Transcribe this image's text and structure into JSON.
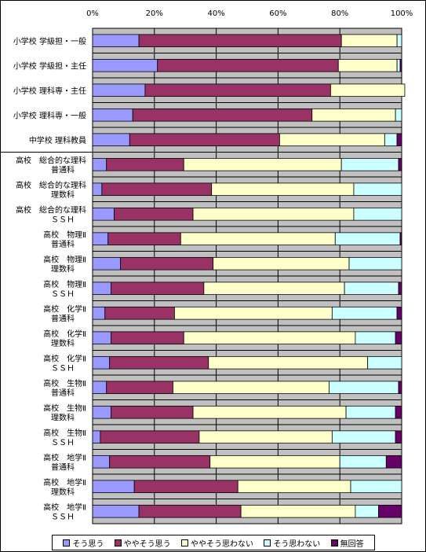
{
  "chart_data": {
    "type": "bar",
    "orientation": "horizontal",
    "stacked": true,
    "percent_stacked": true,
    "xlim": [
      0,
      100
    ],
    "x_ticks": [
      "0%",
      "20%",
      "40%",
      "60%",
      "80%",
      "100%"
    ],
    "grid": true,
    "legend_position": "bottom",
    "categories": [
      [
        "小学校 学級担・一般"
      ],
      [
        "小学校 学級担・主任"
      ],
      [
        "小学校 理科専・主任"
      ],
      [
        "小学校 理科専・一般"
      ],
      [
        "中学校 理科教員"
      ],
      [
        "高校　総合的な理科",
        "普通科"
      ],
      [
        "高校　総合的な理科",
        "理数科"
      ],
      [
        "高校　総合的な理科",
        "ＳＳＨ"
      ],
      [
        "高校　物理Ⅱ",
        "普通科"
      ],
      [
        "高校　物理Ⅱ",
        "理数科"
      ],
      [
        "高校　物理Ⅱ",
        "ＳＳＨ"
      ],
      [
        "高校　化学Ⅱ",
        "普通科"
      ],
      [
        "高校　化学Ⅱ",
        "理数科"
      ],
      [
        "高校　化学Ⅱ",
        "ＳＳＨ"
      ],
      [
        "高校　生物Ⅱ",
        "普通科"
      ],
      [
        "高校　生物Ⅱ",
        "理数科"
      ],
      [
        "高校　生物Ⅱ",
        "ＳＳＨ"
      ],
      [
        "高校　地学Ⅱ",
        "普通科"
      ],
      [
        "高校　地学Ⅱ",
        "理数科"
      ],
      [
        "高校　地学Ⅱ",
        "ＳＳＨ"
      ]
    ],
    "series": [
      {
        "name": "そう思う",
        "color": "#9999ff",
        "values": [
          15,
          21,
          17,
          13,
          12,
          4.5,
          3,
          7,
          5,
          9,
          6,
          4,
          6,
          5.5,
          4.5,
          6,
          2.5,
          5.5,
          13.5,
          15
        ]
      },
      {
        "name": "ややそう思う",
        "color": "#993366",
        "values": [
          65.5,
          58.5,
          60,
          58,
          48.5,
          25,
          35.5,
          25.5,
          23.5,
          30,
          30,
          22.5,
          23.5,
          32,
          21.5,
          26.5,
          32,
          32.5,
          33.5,
          33
        ]
      },
      {
        "name": "ややそう思わない",
        "color": "#ffffcc",
        "values": [
          18,
          19,
          24,
          27,
          34,
          51,
          46,
          52,
          50,
          44,
          45.5,
          51,
          55.5,
          51.5,
          50.5,
          49.5,
          43,
          42,
          36.5,
          37
        ]
      },
      {
        "name": "そう思わない",
        "color": "#ccffff",
        "values": [
          1.5,
          1,
          0,
          2,
          4,
          18.5,
          15.5,
          15.5,
          21,
          17,
          17.5,
          21,
          13,
          11,
          22.5,
          16,
          20.5,
          15,
          16.5,
          7.5
        ]
      },
      {
        "name": "無回答",
        "color": "#660066",
        "values": [
          0,
          0.5,
          0,
          0,
          1.5,
          1,
          0,
          0,
          0.5,
          0,
          1,
          1.5,
          2,
          0,
          1,
          2,
          2,
          5,
          0,
          7.5
        ]
      }
    ]
  }
}
